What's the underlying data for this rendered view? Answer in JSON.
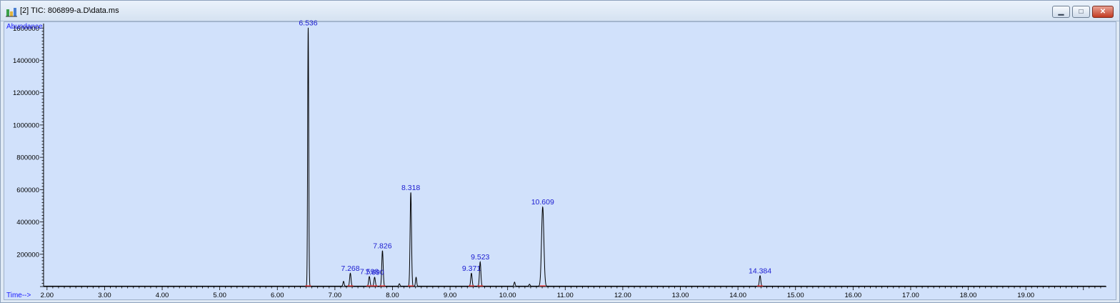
{
  "window": {
    "title": "[2] TIC: 806899-a.D\\data.ms",
    "icons": [
      "chromatogram-app-icon",
      "minimize-icon",
      "maximize-icon",
      "close-icon"
    ]
  },
  "chart_data": {
    "type": "line",
    "title": "",
    "ylabel": "Abundance",
    "xlabel": "Time-->",
    "xlim": [
      1.94,
      20.4
    ],
    "ylim": [
      0,
      1610000
    ],
    "x_ticks": [
      "2.00",
      "3.00",
      "4.00",
      "5.00",
      "6.00",
      "7.00",
      "8.00",
      "9.00",
      "10.00",
      "11.00",
      "12.00",
      "13.00",
      "14.00",
      "15.00",
      "16.00",
      "17.00",
      "18.00",
      "19.00"
    ],
    "y_ticks": [
      "200000",
      "400000",
      "600000",
      "800000",
      "1000000",
      "1200000",
      "1400000",
      "1600000"
    ],
    "colors": {
      "trace": "#000000",
      "labels": "#1a1aff",
      "baseline_marks": "#ff3333",
      "background": "#d1e1fb"
    },
    "labeled_peaks": [
      {
        "rt": "6.536",
        "x": 6.536,
        "y": 1600000
      },
      {
        "rt": "7.268",
        "x": 7.268,
        "y": 80000
      },
      {
        "rt": "7.598",
        "x": 7.598,
        "y": 60000
      },
      {
        "rt": "7.690",
        "x": 7.69,
        "y": 55000
      },
      {
        "rt": "7.826",
        "x": 7.826,
        "y": 220000
      },
      {
        "rt": "8.318",
        "x": 8.318,
        "y": 580000
      },
      {
        "rt": "9.371",
        "x": 9.371,
        "y": 80000
      },
      {
        "rt": "9.523",
        "x": 9.523,
        "y": 150000
      },
      {
        "rt": "10.609",
        "x": 10.609,
        "y": 490000
      },
      {
        "rt": "14.384",
        "x": 14.384,
        "y": 65000
      }
    ],
    "minor_peaks": [
      {
        "x": 7.15,
        "y": 30000
      },
      {
        "x": 8.12,
        "y": 15000
      },
      {
        "x": 8.41,
        "y": 55000
      },
      {
        "x": 10.12,
        "y": 25000
      },
      {
        "x": 10.38,
        "y": 12000
      }
    ]
  }
}
